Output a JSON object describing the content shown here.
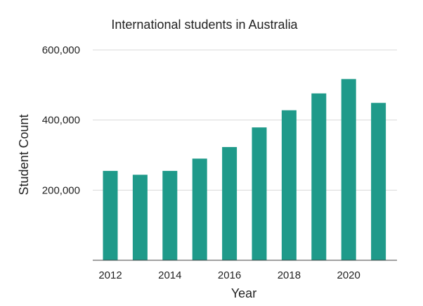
{
  "chart_data": {
    "type": "bar",
    "title": "International students in Australia",
    "xlabel": "Year",
    "ylabel": "Student Count",
    "categories": [
      "2012",
      "2013",
      "2014",
      "2015",
      "2016",
      "2017",
      "2018",
      "2019",
      "2020",
      "2021"
    ],
    "x_tick_labels": [
      "2012",
      "",
      "2014",
      "",
      "2016",
      "",
      "2018",
      "",
      "2020",
      ""
    ],
    "values": [
      255000,
      244000,
      255000,
      290000,
      323000,
      379000,
      428000,
      476000,
      517000,
      449000
    ],
    "ylim": [
      0,
      600000
    ],
    "y_ticks": [
      200000,
      400000,
      600000
    ],
    "y_tick_labels": [
      "200,000",
      "400,000",
      "600,000"
    ],
    "grid": true,
    "legend": "none",
    "bar_color": "#1f9a8a",
    "grid_color": "#d9d9d9",
    "axis_color": "#444444"
  }
}
